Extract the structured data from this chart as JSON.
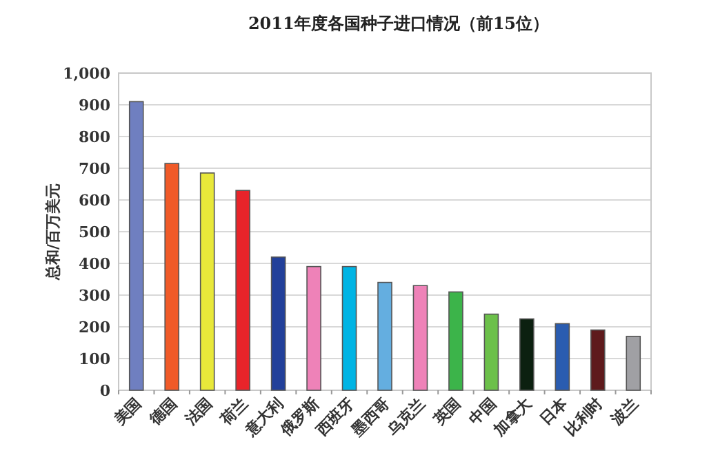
{
  "chart_data": {
    "type": "bar",
    "title": "2011年度各国种子进口情况（前15位）",
    "ylabel": "总和/百万美元",
    "categories": [
      "美国",
      "德国",
      "法国",
      "荷兰",
      "意大利",
      "俄罗斯",
      "西班牙",
      "墨西哥",
      "乌克兰",
      "英国",
      "中国",
      "加拿大",
      "日本",
      "比利时",
      "波兰"
    ],
    "values": [
      910,
      715,
      685,
      630,
      420,
      390,
      390,
      340,
      330,
      310,
      240,
      225,
      210,
      190,
      170
    ],
    "colors": [
      "#6f7fc0",
      "#f05a28",
      "#e8e83a",
      "#e8242a",
      "#22409a",
      "#ee82b8",
      "#00b4e4",
      "#64aee0",
      "#ee82b8",
      "#3cb44a",
      "#6cc04a",
      "#0c2010",
      "#2a5cb0",
      "#5e1a1c",
      "#a0a0a4"
    ],
    "ylim": [
      0,
      1000
    ],
    "yticks": [
      0,
      100,
      200,
      300,
      400,
      500,
      600,
      700,
      800,
      900,
      {
        "value": 1000,
        "label": "1,000"
      }
    ],
    "grid": "y"
  }
}
